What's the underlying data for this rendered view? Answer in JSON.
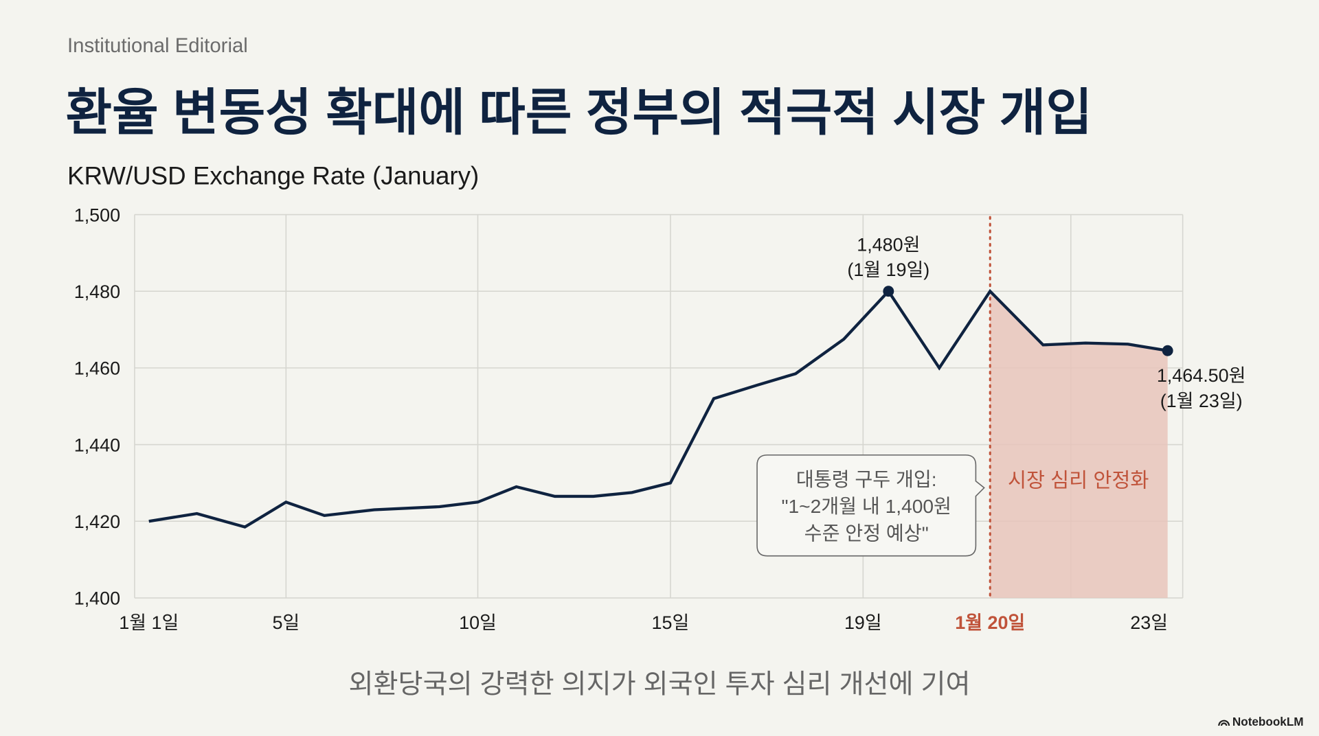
{
  "kicker": "Institutional Editorial",
  "title": "환율 변동성 확대에 따른 정부의 적극적 시장 개입",
  "caption": "외환당국의 강력한 의지가 외국인 투자 심리 개선에 기여",
  "brand": "NotebookLM",
  "colors": {
    "line": "#0f2340",
    "accent": "#c0533a",
    "shade": "#e8c4bb"
  },
  "chart_data": {
    "type": "line",
    "title": "KRW/USD Exchange Rate (January)",
    "xlabel": "",
    "ylabel": "",
    "ylim": [
      1400,
      1500
    ],
    "yticks": [
      1400,
      1420,
      1440,
      1460,
      1480,
      1500
    ],
    "ytick_labels": [
      "1,400",
      "1,420",
      "1,440",
      "1,460",
      "1,480",
      "1,500"
    ],
    "xticks": [
      {
        "day": 1,
        "label": "1월 1일"
      },
      {
        "day": 5,
        "label": "5일"
      },
      {
        "day": 10,
        "label": "10일"
      },
      {
        "day": 15,
        "label": "15일"
      },
      {
        "day": 19,
        "label": "19일"
      },
      {
        "day": 20,
        "label": "1월 20일",
        "highlight": true
      },
      {
        "day": 23,
        "label": "23일"
      }
    ],
    "grid": true,
    "series": [
      {
        "name": "KRW/USD",
        "x": [
          1,
          2.4,
          3.8,
          5,
          6,
          7.3,
          9,
          10,
          11,
          12,
          13,
          14,
          15,
          15.9,
          16.8,
          17.6,
          18.6,
          19.2,
          19.6,
          20,
          21,
          21.8,
          22.6,
          23.35
        ],
        "values": [
          1420,
          1422,
          1418.5,
          1425,
          1421.5,
          1423,
          1423.8,
          1425,
          1429,
          1426.5,
          1426.5,
          1427.5,
          1430,
          1452,
          1455.5,
          1458.5,
          1467.5,
          1480,
          1460,
          1480,
          1466,
          1466.5,
          1466.2,
          1464.5
        ]
      }
    ],
    "annotations": {
      "peak": {
        "x": 19.2,
        "value": 1480,
        "line1": "1,480원",
        "line2": "(1월 19일)"
      },
      "last": {
        "x": 23.35,
        "value": 1464.5,
        "line1": "1,464.50원",
        "line2": "(1월 23일)"
      },
      "intervention_day": 20,
      "callout": [
        "대통령 구두 개입:",
        "\"1~2개월 내 1,400원",
        "수준 안정 예상\""
      ],
      "region_label": "시장 심리 안정화"
    }
  }
}
